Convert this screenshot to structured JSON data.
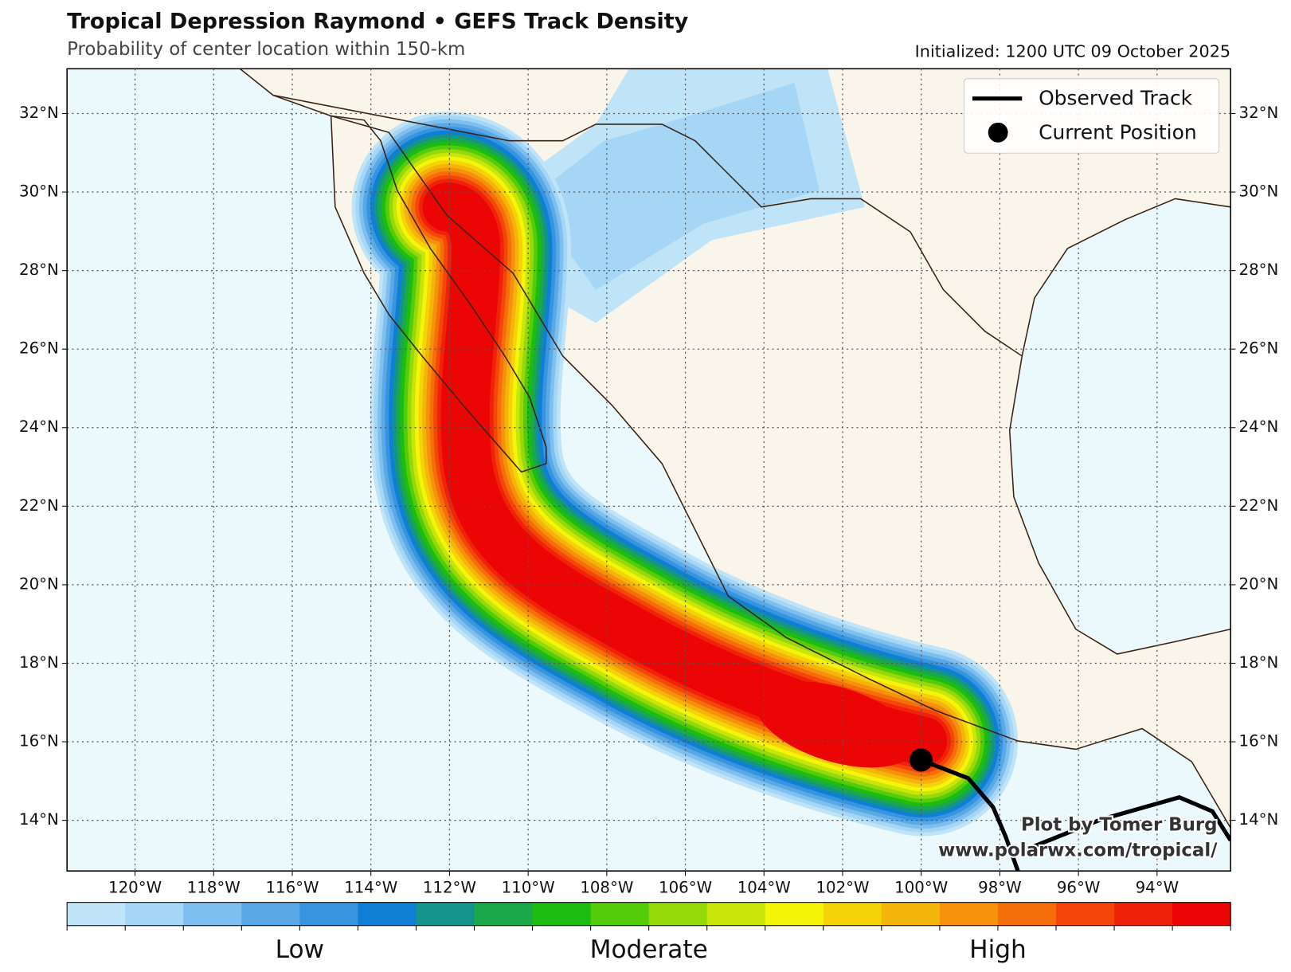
{
  "header": {
    "title": "Tropical Depression Raymond • GEFS Track Density",
    "subtitle": "Probability of center location within 150-km",
    "initialized": "Initialized: 1200 UTC 09 October 2025"
  },
  "map": {
    "lon_range": [
      -121.73,
      -92.13
    ],
    "lat_range": [
      12.71,
      33.14
    ],
    "lon_ticks": [
      {
        "value": -120,
        "label": "120°W"
      },
      {
        "value": -118,
        "label": "118°W"
      },
      {
        "value": -116,
        "label": "116°W"
      },
      {
        "value": -114,
        "label": "114°W"
      },
      {
        "value": -112,
        "label": "112°W"
      },
      {
        "value": -110,
        "label": "110°W"
      },
      {
        "value": -108,
        "label": "108°W"
      },
      {
        "value": -106,
        "label": "106°W"
      },
      {
        "value": -104,
        "label": "104°W"
      },
      {
        "value": -102,
        "label": "102°W"
      },
      {
        "value": -100,
        "label": "100°W"
      },
      {
        "value": -98,
        "label": "98°W"
      },
      {
        "value": -96,
        "label": "96°W"
      },
      {
        "value": -94,
        "label": "94°W"
      }
    ],
    "lat_ticks": [
      {
        "value": 14,
        "label": "14°N"
      },
      {
        "value": 16,
        "label": "16°N"
      },
      {
        "value": 18,
        "label": "18°N"
      },
      {
        "value": 20,
        "label": "20°N"
      },
      {
        "value": 22,
        "label": "22°N"
      },
      {
        "value": 24,
        "label": "24°N"
      },
      {
        "value": 26,
        "label": "26°N"
      },
      {
        "value": 28,
        "label": "28°N"
      },
      {
        "value": 30,
        "label": "30°N"
      },
      {
        "value": 32,
        "label": "32°N"
      }
    ],
    "land_color": "#faf5ea",
    "ocean_color": "#ebf8fc",
    "grid": true
  },
  "legend": {
    "items": [
      {
        "label": "Observed Track"
      },
      {
        "label": "Current Position"
      }
    ]
  },
  "colorbar": {
    "colors": [
      "#bfe3f7",
      "#a6d6f5",
      "#7ebff0",
      "#5aa9e6",
      "#3795e0",
      "#0f7fd6",
      "#14938a",
      "#1aa84a",
      "#1cbd10",
      "#55cc0a",
      "#96d90a",
      "#c8e60a",
      "#f5f50a",
      "#f5d20a",
      "#f5b40a",
      "#f5910a",
      "#f56e0a",
      "#f5460a",
      "#f0230a",
      "#eb0505"
    ],
    "labels": [
      "Low",
      "Moderate",
      "High"
    ]
  },
  "credit": [
    "Plot by Tomer Burg",
    "www.polarwx.com/tropical/"
  ]
}
